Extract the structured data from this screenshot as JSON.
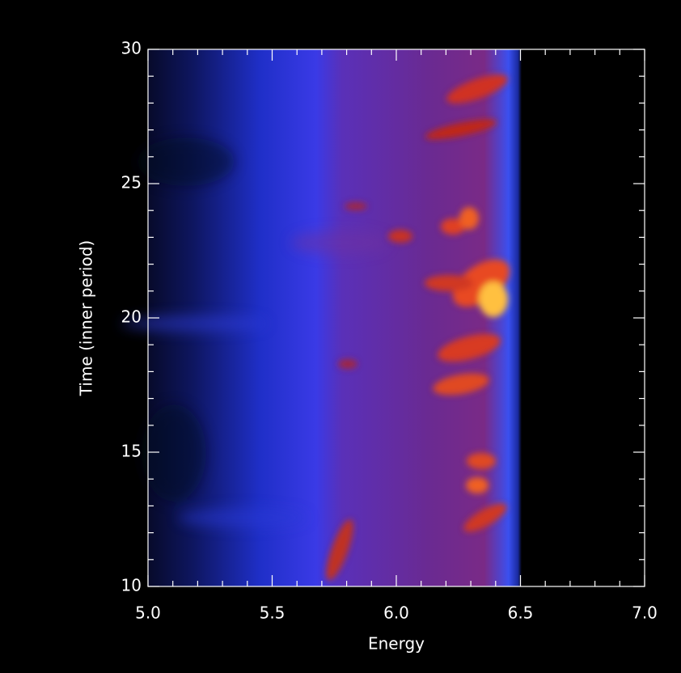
{
  "chart_data": {
    "type": "heatmap",
    "xlabel": "Energy",
    "ylabel": "Time (inner period)",
    "xlim": [
      5.0,
      7.0
    ],
    "ylim": [
      10,
      30
    ],
    "xticks": [
      {
        "value": 5,
        "label": "5.0"
      },
      {
        "value": 5.5,
        "label": "5.5"
      },
      {
        "value": 6,
        "label": "6.0"
      },
      {
        "value": 6.5,
        "label": "6.5"
      },
      {
        "value": 7,
        "label": "7.0"
      }
    ],
    "yticks": [
      10,
      15,
      20,
      25,
      30
    ],
    "xminorticks": [
      5.1,
      5.2,
      5.3,
      5.4,
      5.6,
      5.7,
      5.8,
      5.9,
      6.1,
      6.2,
      6.3,
      6.4,
      6.6,
      6.7,
      6.8,
      6.9
    ],
    "yminorticks": [
      11,
      12,
      13,
      14,
      16,
      17,
      18,
      19,
      21,
      22,
      23,
      24,
      26,
      27,
      28,
      29
    ]
  }
}
